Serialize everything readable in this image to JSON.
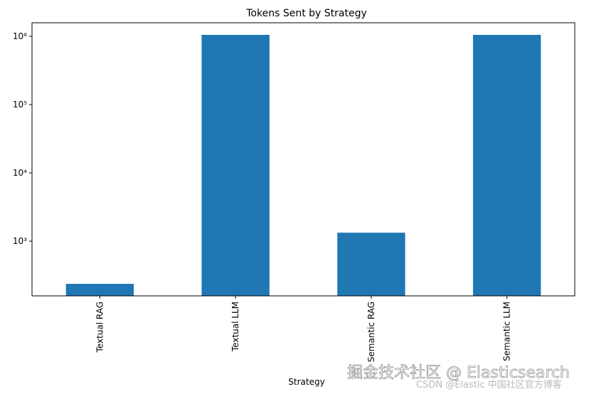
{
  "chart_data": {
    "type": "bar",
    "title": "Tokens Sent by Strategy",
    "x_label": "Strategy",
    "categories": [
      "Textual RAG",
      "Textual LLM",
      "Semantic RAG",
      "Semantic LLM"
    ],
    "values": [
      237,
      1050000,
      1330,
      1050000
    ],
    "color": "#1f77b4",
    "log_scale": true,
    "ylim": [
      158,
      1580000
    ],
    "yticks": [
      {
        "value": 1000,
        "label": "10³"
      },
      {
        "value": 10000,
        "label": "10⁴"
      },
      {
        "value": 100000,
        "label": "10⁵"
      },
      {
        "value": 1000000,
        "label": "10⁶"
      }
    ]
  },
  "watermark": {
    "main": "掘金技术社区 @ Elasticsearch",
    "sub": "CSDN @Elastic 中国社区官方博客"
  }
}
